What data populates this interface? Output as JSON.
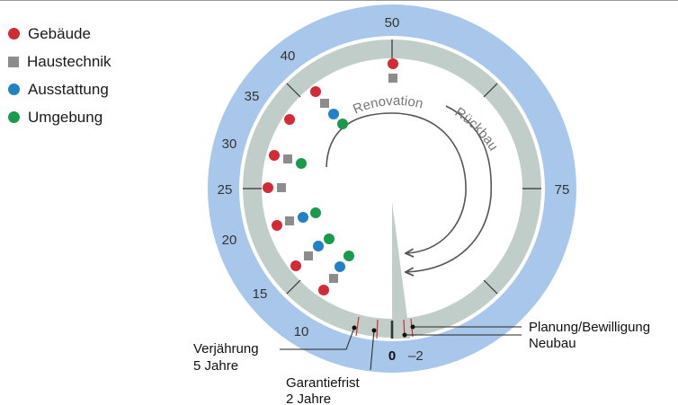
{
  "legend": {
    "items": [
      {
        "label": "Gebäude",
        "color": "#d22a36",
        "shape": "circle"
      },
      {
        "label": "Haustechnik",
        "color": "#8c8c8c",
        "shape": "square"
      },
      {
        "label": "Ausstattung",
        "color": "#2181c4",
        "shape": "circle"
      },
      {
        "label": "Umgebung",
        "color": "#1a9a4c",
        "shape": "circle"
      }
    ]
  },
  "dial": {
    "outer_ring_color": "#a9c7ea",
    "inner_ring_color": "#c1cdc8",
    "scale_labels": [
      "50",
      "40",
      "35",
      "30",
      "25",
      "20",
      "15",
      "10",
      "75",
      "0",
      "–2"
    ],
    "arc_labels": {
      "renovation": "Renovation",
      "rueckbau": "Rückbau"
    }
  },
  "annotations": {
    "verjaehrung": {
      "line1": "Verjährung",
      "line2": "5 Jahre"
    },
    "garantiefrist": {
      "line1": "Garantiefrist",
      "line2": "2 Jahre"
    },
    "planung": "Planung/Bewilligung",
    "neubau": "Neubau"
  }
}
